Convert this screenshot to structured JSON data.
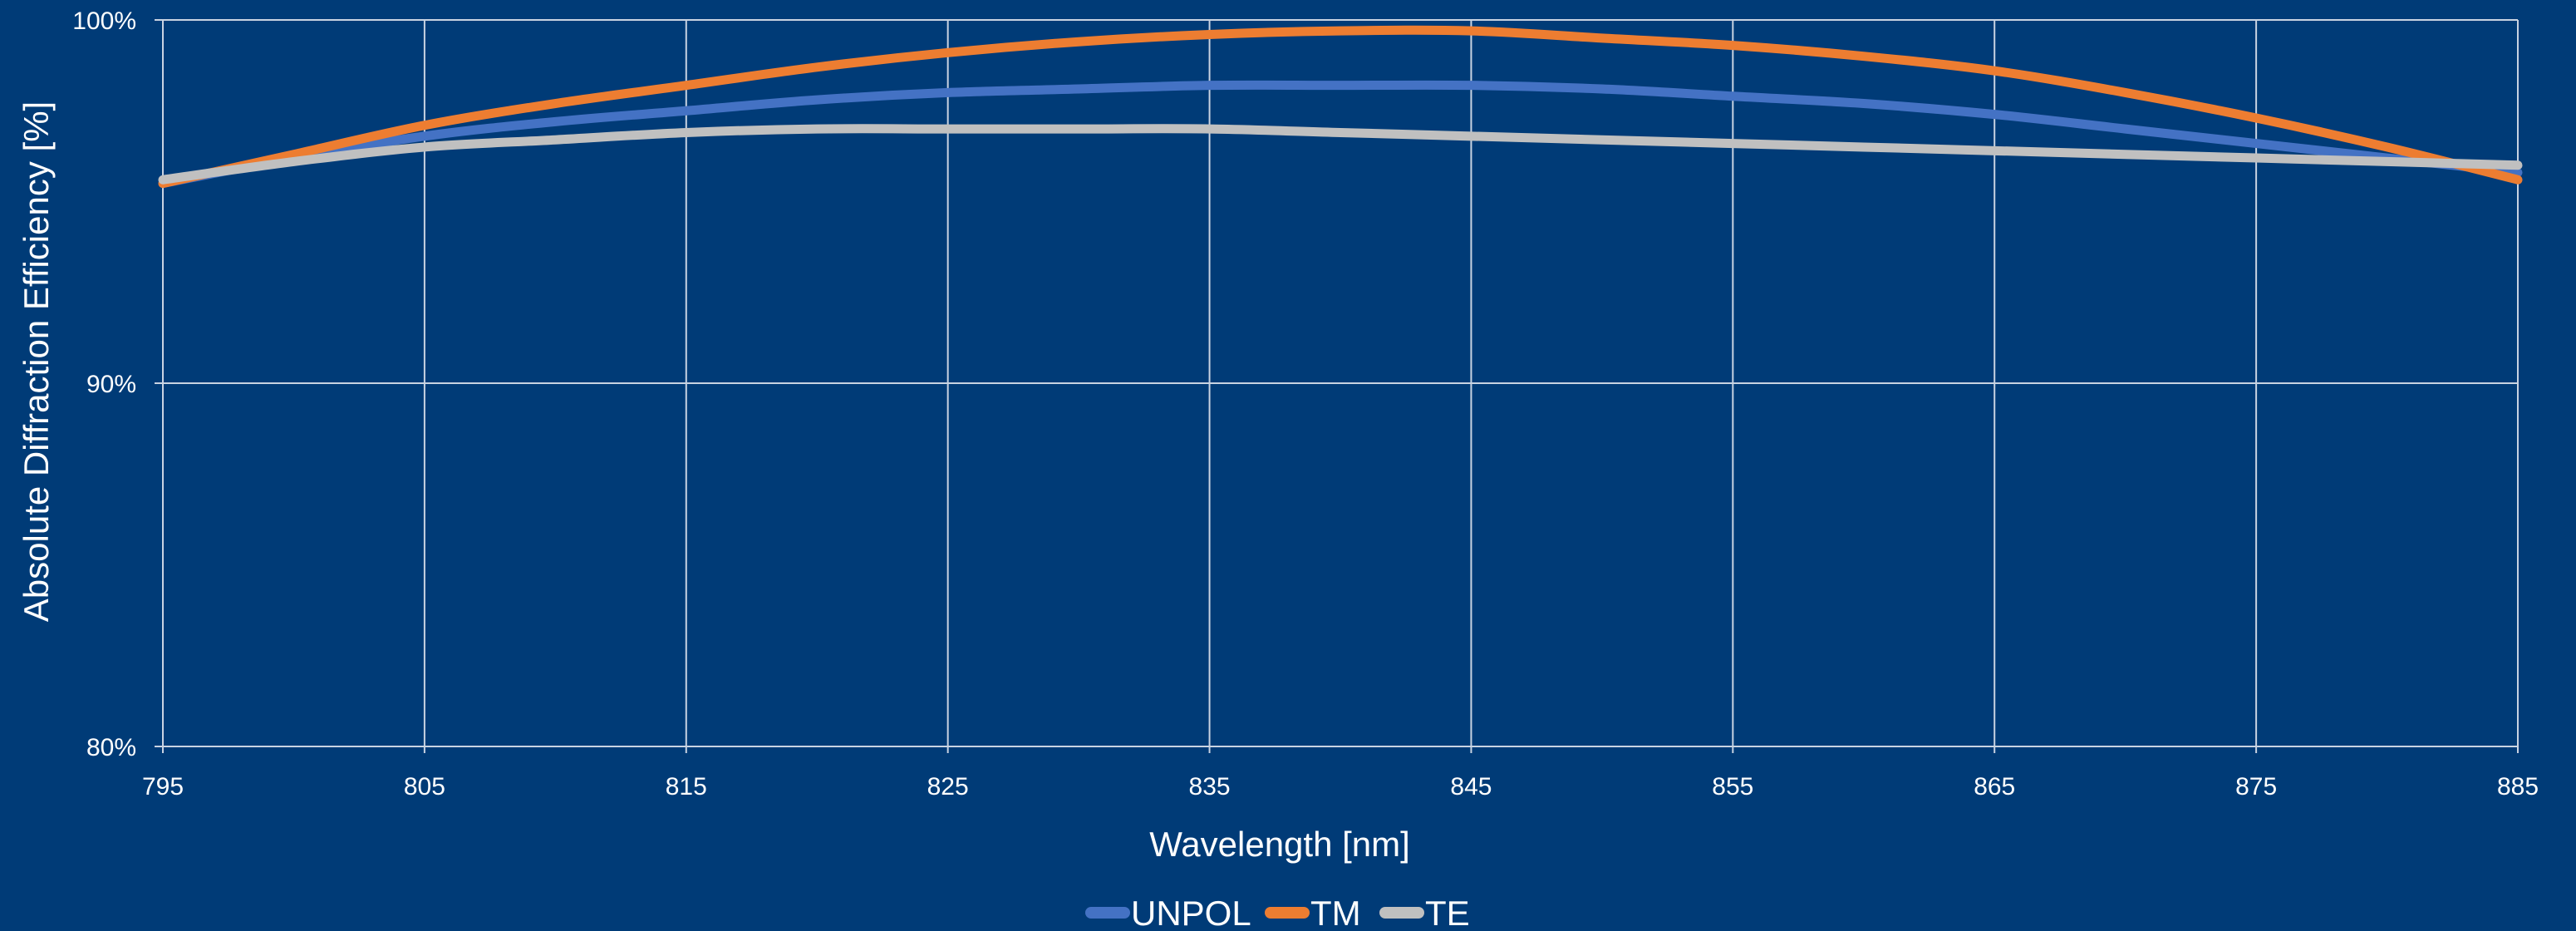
{
  "chart_data": {
    "type": "line",
    "title": "",
    "xlabel": "Wavelength [nm]",
    "ylabel": "Absolute Diffraction Efficiency [%]",
    "xlim": [
      795,
      885
    ],
    "ylim": [
      80,
      100
    ],
    "x_ticks": [
      795,
      805,
      815,
      825,
      835,
      845,
      855,
      865,
      875,
      885
    ],
    "y_ticks": [
      80,
      90,
      100
    ],
    "y_tick_labels": [
      "80%",
      "90%",
      "100%"
    ],
    "grid": true,
    "legend_position": "bottom",
    "background_color": "#003b77",
    "grid_color": "#c9d3e2",
    "series": [
      {
        "name": "UNPOL",
        "color": "#4472c4",
        "x": [
          795,
          800,
          805,
          810,
          815,
          820,
          825,
          830,
          835,
          840,
          845,
          850,
          855,
          860,
          865,
          870,
          875,
          880,
          885
        ],
        "values": [
          95.5,
          96.2,
          96.8,
          97.2,
          97.5,
          97.8,
          98.0,
          98.1,
          98.2,
          98.2,
          98.2,
          98.1,
          97.9,
          97.7,
          97.4,
          97.0,
          96.6,
          96.2,
          95.8
        ]
      },
      {
        "name": "TM",
        "color": "#ed7d31",
        "x": [
          795,
          800,
          805,
          810,
          815,
          820,
          825,
          830,
          835,
          840,
          845,
          850,
          855,
          860,
          865,
          870,
          875,
          880,
          885
        ],
        "values": [
          95.5,
          96.3,
          97.1,
          97.7,
          98.2,
          98.7,
          99.1,
          99.4,
          99.6,
          99.7,
          99.7,
          99.5,
          99.3,
          99.0,
          98.6,
          98.0,
          97.3,
          96.5,
          95.6
        ]
      },
      {
        "name": "TE",
        "color": "#c0c0c0",
        "x": [
          795,
          800,
          805,
          810,
          815,
          820,
          825,
          830,
          835,
          840,
          845,
          850,
          855,
          860,
          865,
          870,
          875,
          880,
          885
        ],
        "values": [
          95.6,
          96.1,
          96.5,
          96.7,
          96.9,
          97.0,
          97.0,
          97.0,
          97.0,
          96.9,
          96.8,
          96.7,
          96.6,
          96.5,
          96.4,
          96.3,
          96.2,
          96.1,
          96.0
        ]
      }
    ]
  }
}
